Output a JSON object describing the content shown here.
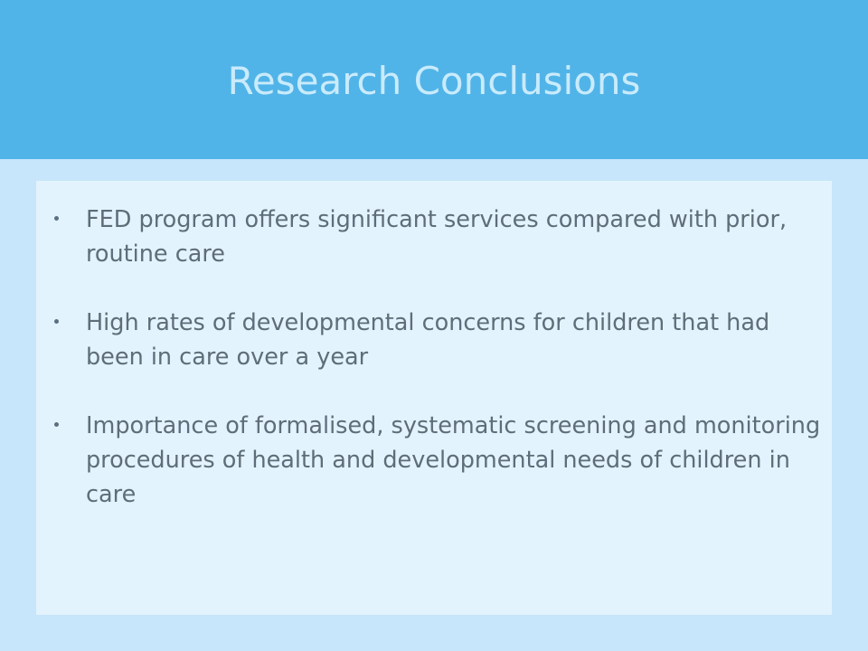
{
  "slide": {
    "title": "Research Conclusions",
    "bullets": [
      {
        "text": "FED program offers significant services compared with prior, routine care"
      },
      {
        "text": "High rates of developmental concerns for children that had been in care over a year"
      },
      {
        "text": "Importance of formalised, systematic screening and monitoring procedures of health and developmental needs of children in care"
      }
    ],
    "colors": {
      "header_background": "#51b4e8",
      "title_text": "#c9ebfb",
      "slide_background": "#c7e6fb",
      "content_background": "#e2f3fd",
      "body_text": "#5e6d79"
    }
  }
}
